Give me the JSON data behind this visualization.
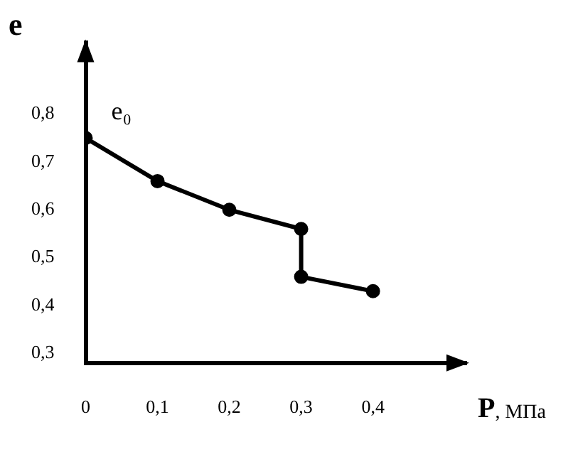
{
  "chart_data": {
    "type": "line",
    "xlabel": "P, МПа",
    "ylabel": "e",
    "x": [
      0,
      0.1,
      0.2,
      0.3,
      0.3,
      0.4
    ],
    "series": [
      {
        "color": "#000000",
        "values": [
          0.75,
          0.66,
          0.6,
          0.56,
          0.46,
          0.43
        ]
      }
    ],
    "xlim": [
      0,
      0.53
    ],
    "ylim": [
      0.28,
      0.95
    ],
    "xticks": [
      0,
      {
        "value": 0.1,
        "label": "0,1"
      },
      {
        "value": 0.2,
        "label": "0,2"
      },
      {
        "value": 0.3,
        "label": "0,3"
      },
      {
        "value": 0.4,
        "label": "0,4"
      }
    ],
    "yticks": [
      {
        "value": 0.3,
        "label": "0,3"
      },
      {
        "value": 0.4,
        "label": "0,4"
      },
      {
        "value": 0.5,
        "label": "0,5"
      },
      {
        "value": 0.6,
        "label": "0,6"
      },
      {
        "value": 0.7,
        "label": "0,7"
      },
      {
        "value": 0.8,
        "label": "0,8"
      }
    ],
    "annotations": [
      {
        "text": "e₀",
        "x": 0,
        "y": 0.75
      }
    ],
    "grid": false,
    "legend": false,
    "marker": "circle",
    "line_style": "solid"
  }
}
